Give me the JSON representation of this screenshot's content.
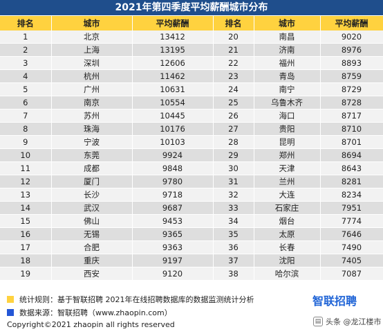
{
  "title": "2021年第四季度平均薪酬城市分布",
  "headers": {
    "rank": "排名",
    "city": "城市",
    "salary": "平均薪酬",
    "rank2": "排名",
    "city2": "城市",
    "salary2": "平均薪酬"
  },
  "rows": [
    {
      "r1": "1",
      "c1": "北京",
      "s1": "13412",
      "r2": "20",
      "c2": "南昌",
      "s2": "9020"
    },
    {
      "r1": "2",
      "c1": "上海",
      "s1": "13195",
      "r2": "21",
      "c2": "济南",
      "s2": "8976"
    },
    {
      "r1": "3",
      "c1": "深圳",
      "s1": "12606",
      "r2": "22",
      "c2": "福州",
      "s2": "8893"
    },
    {
      "r1": "4",
      "c1": "杭州",
      "s1": "11462",
      "r2": "23",
      "c2": "青岛",
      "s2": "8759"
    },
    {
      "r1": "5",
      "c1": "广州",
      "s1": "10631",
      "r2": "24",
      "c2": "南宁",
      "s2": "8729"
    },
    {
      "r1": "6",
      "c1": "南京",
      "s1": "10554",
      "r2": "25",
      "c2": "乌鲁木齐",
      "s2": "8728"
    },
    {
      "r1": "7",
      "c1": "苏州",
      "s1": "10445",
      "r2": "26",
      "c2": "海口",
      "s2": "8717"
    },
    {
      "r1": "8",
      "c1": "珠海",
      "s1": "10176",
      "r2": "27",
      "c2": "贵阳",
      "s2": "8710"
    },
    {
      "r1": "9",
      "c1": "宁波",
      "s1": "10103",
      "r2": "28",
      "c2": "昆明",
      "s2": "8701"
    },
    {
      "r1": "10",
      "c1": "东莞",
      "s1": "9924",
      "r2": "29",
      "c2": "郑州",
      "s2": "8694"
    },
    {
      "r1": "11",
      "c1": "成都",
      "s1": "9848",
      "r2": "30",
      "c2": "天津",
      "s2": "8643"
    },
    {
      "r1": "12",
      "c1": "厦门",
      "s1": "9780",
      "r2": "31",
      "c2": "兰州",
      "s2": "8281"
    },
    {
      "r1": "13",
      "c1": "长沙",
      "s1": "9718",
      "r2": "32",
      "c2": "大连",
      "s2": "8234"
    },
    {
      "r1": "14",
      "c1": "武汉",
      "s1": "9687",
      "r2": "33",
      "c2": "石家庄",
      "s2": "7951"
    },
    {
      "r1": "15",
      "c1": "佛山",
      "s1": "9453",
      "r2": "34",
      "c2": "烟台",
      "s2": "7774"
    },
    {
      "r1": "16",
      "c1": "无锡",
      "s1": "9365",
      "r2": "35",
      "c2": "太原",
      "s2": "7646"
    },
    {
      "r1": "17",
      "c1": "合肥",
      "s1": "9363",
      "r2": "36",
      "c2": "长春",
      "s2": "7490"
    },
    {
      "r1": "18",
      "c1": "重庆",
      "s1": "9197",
      "r2": "37",
      "c2": "沈阳",
      "s2": "7405"
    },
    {
      "r1": "19",
      "c1": "西安",
      "s1": "9120",
      "r2": "38",
      "c2": "哈尔滨",
      "s2": "7087"
    }
  ],
  "footer": {
    "rule_text": "统计规则：基于智联招聘 2021年在线招聘数据库的数据监测统计分析",
    "rule_color": "#ffd23f",
    "source_text": "数据来源：智联招聘（www.zhaopin.com）",
    "source_color": "#2456d6",
    "copyright": "Copyright©2021 zhaopin all rights reserved",
    "logo_text": "智联招聘",
    "watermark": "头条 @龙江楼市"
  }
}
